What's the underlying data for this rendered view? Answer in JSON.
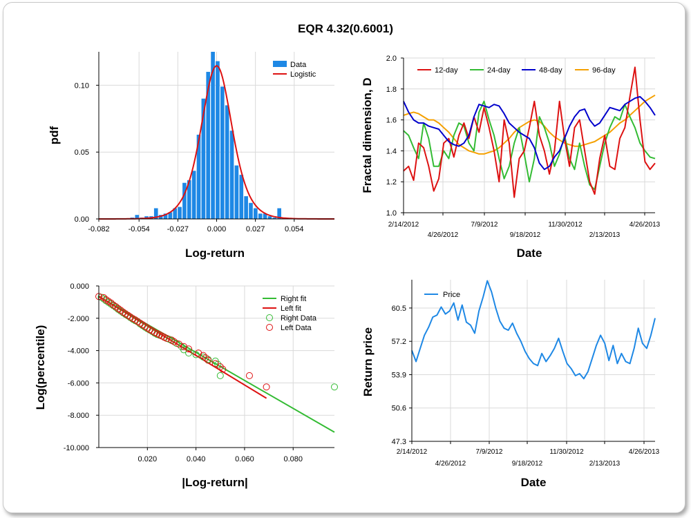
{
  "title": "EQR 4.32(0.6001)",
  "colors": {
    "hist_bar": "#1e88e5",
    "logistic": "#dd1111",
    "d12": "#dd1111",
    "d24": "#33bb33",
    "d48": "#0000cc",
    "d96": "#f5a000",
    "right": "#33bb33",
    "left": "#dd1111",
    "price": "#1e88e5",
    "grid": "#d9d9d9"
  },
  "chart_data": [
    {
      "type": "bar",
      "ylabel": "pdf",
      "xlabel": "Log-return",
      "xlim": [
        -0.082,
        0.082
      ],
      "ylim": [
        0,
        0.125
      ],
      "xticks": [
        -0.082,
        -0.054,
        -0.027,
        0.0,
        0.027,
        0.054
      ],
      "xtick_labels": [
        "-0.082",
        "-0.054",
        "-0.027",
        "0.000",
        "0.027",
        "0.054"
      ],
      "yticks": [
        0,
        0.05,
        0.1
      ],
      "ytick_labels": [
        "0.00",
        "0.05",
        "0.10"
      ],
      "legend": [
        "Data",
        "Logistic"
      ],
      "bin_width": 0.0033,
      "bins_x": [
        -0.062,
        -0.0587,
        -0.0554,
        -0.0521,
        -0.0488,
        -0.0455,
        -0.0422,
        -0.0389,
        -0.0356,
        -0.0323,
        -0.029,
        -0.0257,
        -0.0224,
        -0.0191,
        -0.0158,
        -0.0125,
        -0.0092,
        -0.0059,
        -0.0026,
        0.0007,
        0.004,
        0.0073,
        0.0106,
        0.0139,
        0.0172,
        0.0205,
        0.0238,
        0.0271,
        0.0304,
        0.0337,
        0.037,
        0.0403,
        0.0436,
        0.0469
      ],
      "values": [
        0,
        0.001,
        0.003,
        0.001,
        0.002,
        0.002,
        0.008,
        0.003,
        0.004,
        0.005,
        0.008,
        0.009,
        0.027,
        0.029,
        0.036,
        0.063,
        0.09,
        0.11,
        0.128,
        0.118,
        0.099,
        0.085,
        0.066,
        0.04,
        0.033,
        0.017,
        0.012,
        0.008,
        0.004,
        0.004,
        0.002,
        0.001,
        0.008,
        0.001
      ],
      "logistic_mu": 0.0,
      "logistic_s": 0.0072
    },
    {
      "type": "line",
      "ylabel": "Fractal dimension, D",
      "xlabel": "Date",
      "ylim": [
        1.0,
        2.0
      ],
      "yticks": [
        1.0,
        1.2,
        1.4,
        1.6,
        1.8,
        2.0
      ],
      "ytick_labels": [
        "1.0",
        "1.2",
        "1.4",
        "1.6",
        "1.8",
        "2.0"
      ],
      "xtick_labels": [
        "2/14/2012",
        "4/26/2012",
        "7/9/2012",
        "9/18/2012",
        "11/30/2012",
        "2/13/2013",
        "4/26/2013"
      ],
      "series": [
        {
          "name": "12-day",
          "color_key": "d12",
          "values": [
            1.27,
            1.3,
            1.21,
            1.45,
            1.42,
            1.3,
            1.14,
            1.22,
            1.45,
            1.48,
            1.36,
            1.5,
            1.58,
            1.48,
            1.62,
            1.52,
            1.68,
            1.55,
            1.4,
            1.2,
            1.6,
            1.45,
            1.1,
            1.35,
            1.4,
            1.55,
            1.72,
            1.5,
            1.4,
            1.25,
            1.4,
            1.72,
            1.48,
            1.3,
            1.55,
            1.6,
            1.4,
            1.2,
            1.12,
            1.35,
            1.5,
            1.3,
            1.28,
            1.48,
            1.55,
            1.75,
            1.94,
            1.6,
            1.33,
            1.28,
            1.32
          ]
        },
        {
          "name": "24-day",
          "color_key": "d24",
          "values": [
            1.53,
            1.5,
            1.42,
            1.35,
            1.58,
            1.48,
            1.3,
            1.3,
            1.4,
            1.35,
            1.5,
            1.58,
            1.56,
            1.45,
            1.4,
            1.65,
            1.72,
            1.6,
            1.5,
            1.35,
            1.22,
            1.3,
            1.45,
            1.55,
            1.38,
            1.2,
            1.35,
            1.62,
            1.55,
            1.45,
            1.3,
            1.38,
            1.5,
            1.35,
            1.28,
            1.45,
            1.3,
            1.18,
            1.15,
            1.3,
            1.45,
            1.55,
            1.62,
            1.6,
            1.7,
            1.62,
            1.55,
            1.45,
            1.4,
            1.36,
            1.35
          ]
        },
        {
          "name": "48-day",
          "color_key": "d48",
          "values": [
            1.72,
            1.65,
            1.6,
            1.58,
            1.58,
            1.56,
            1.55,
            1.54,
            1.5,
            1.46,
            1.44,
            1.43,
            1.45,
            1.5,
            1.62,
            1.7,
            1.69,
            1.68,
            1.7,
            1.69,
            1.64,
            1.58,
            1.55,
            1.52,
            1.5,
            1.48,
            1.42,
            1.32,
            1.28,
            1.3,
            1.36,
            1.4,
            1.48,
            1.56,
            1.62,
            1.66,
            1.67,
            1.6,
            1.56,
            1.58,
            1.63,
            1.68,
            1.67,
            1.66,
            1.7,
            1.72,
            1.74,
            1.75,
            1.72,
            1.68,
            1.63
          ]
        },
        {
          "name": "96-day",
          "color_key": "d96",
          "values": [
            1.63,
            1.64,
            1.65,
            1.64,
            1.62,
            1.6,
            1.6,
            1.58,
            1.55,
            1.52,
            1.48,
            1.44,
            1.42,
            1.4,
            1.39,
            1.38,
            1.38,
            1.39,
            1.4,
            1.42,
            1.45,
            1.48,
            1.52,
            1.55,
            1.57,
            1.59,
            1.6,
            1.59,
            1.56,
            1.52,
            1.49,
            1.47,
            1.45,
            1.44,
            1.43,
            1.43,
            1.44,
            1.45,
            1.46,
            1.48,
            1.5,
            1.52,
            1.55,
            1.58,
            1.6,
            1.63,
            1.66,
            1.69,
            1.72,
            1.74,
            1.76
          ]
        }
      ]
    },
    {
      "type": "scatter",
      "ylabel": "Log(percentile)",
      "xlabel": "|Log-return|",
      "xlim": [
        0,
        0.097
      ],
      "ylim": [
        -10.0,
        0.0
      ],
      "xticks": [
        0.02,
        0.04,
        0.06,
        0.08
      ],
      "xtick_labels": [
        "0.020",
        "0.040",
        "0.060",
        "0.080"
      ],
      "yticks": [
        0,
        -2,
        -4,
        -6,
        -8,
        -10
      ],
      "ytick_labels": [
        "0.000",
        "-2.000",
        "-4.000",
        "-6.000",
        "-8.000",
        "-10.000"
      ],
      "legend": [
        "Right fit",
        "Left fit",
        "Right Data",
        "Left Data"
      ],
      "right_fit": {
        "x": [
          0.0,
          0.097
        ],
        "y": [
          -0.65,
          -9.05
        ]
      },
      "left_fit": {
        "x": [
          0.0,
          0.069
        ],
        "y": [
          -0.65,
          -6.95
        ]
      },
      "right_data": {
        "x": [
          0.001,
          0.002,
          0.003,
          0.004,
          0.005,
          0.006,
          0.007,
          0.008,
          0.009,
          0.01,
          0.011,
          0.012,
          0.013,
          0.014,
          0.015,
          0.016,
          0.017,
          0.018,
          0.019,
          0.02,
          0.021,
          0.022,
          0.023,
          0.024,
          0.025,
          0.026,
          0.027,
          0.028,
          0.029,
          0.03,
          0.032,
          0.034,
          0.035,
          0.037,
          0.04,
          0.043,
          0.045,
          0.048,
          0.049,
          0.05,
          0.097
        ],
        "y": [
          -0.7,
          -0.8,
          -0.92,
          -1.02,
          -1.12,
          -1.22,
          -1.33,
          -1.45,
          -1.56,
          -1.66,
          -1.76,
          -1.85,
          -1.96,
          -2.06,
          -2.15,
          -2.22,
          -2.35,
          -2.45,
          -2.55,
          -2.65,
          -2.73,
          -2.82,
          -2.92,
          -3.0,
          -3.05,
          -3.1,
          -3.17,
          -3.25,
          -3.3,
          -3.38,
          -3.55,
          -3.75,
          -3.95,
          -4.15,
          -4.25,
          -4.4,
          -4.55,
          -4.65,
          -4.85,
          -5.55,
          -6.25
        ]
      },
      "left_data": {
        "x": [
          0.0,
          0.002,
          0.003,
          0.004,
          0.005,
          0.006,
          0.007,
          0.008,
          0.009,
          0.01,
          0.011,
          0.012,
          0.013,
          0.014,
          0.015,
          0.016,
          0.017,
          0.018,
          0.019,
          0.02,
          0.021,
          0.022,
          0.023,
          0.024,
          0.025,
          0.026,
          0.027,
          0.028,
          0.03,
          0.031,
          0.033,
          0.035,
          0.037,
          0.041,
          0.043,
          0.044,
          0.045,
          0.048,
          0.05,
          0.051,
          0.062,
          0.069
        ],
        "y": [
          -0.65,
          -0.72,
          -0.85,
          -0.95,
          -1.05,
          -1.18,
          -1.28,
          -1.4,
          -1.5,
          -1.62,
          -1.72,
          -1.82,
          -1.92,
          -2.02,
          -2.1,
          -2.2,
          -2.3,
          -2.4,
          -2.5,
          -2.6,
          -2.7,
          -2.78,
          -2.88,
          -2.95,
          -3.02,
          -3.1,
          -3.18,
          -3.25,
          -3.35,
          -3.45,
          -3.6,
          -3.75,
          -3.9,
          -4.15,
          -4.3,
          -4.45,
          -4.6,
          -4.8,
          -5.0,
          -5.15,
          -5.55,
          -6.25
        ]
      }
    },
    {
      "type": "line",
      "ylabel": "Return price",
      "xlabel": "Date",
      "ylim": [
        47.3,
        63.3
      ],
      "yticks": [
        47.3,
        50.6,
        53.9,
        57.2,
        60.5
      ],
      "ytick_labels": [
        "47.3",
        "50.6",
        "53.9",
        "57.2",
        "60.5"
      ],
      "xtick_labels": [
        "2/14/2012",
        "4/26/2012",
        "7/9/2012",
        "9/18/2012",
        "11/30/2012",
        "2/13/2013",
        "4/26/2013"
      ],
      "series": [
        {
          "name": "Price",
          "color_key": "price",
          "values": [
            56.3,
            55.2,
            56.5,
            57.8,
            58.6,
            59.6,
            59.8,
            60.6,
            59.9,
            60.2,
            61.0,
            59.3,
            60.8,
            59.1,
            58.8,
            58.0,
            60.2,
            61.6,
            63.2,
            62.1,
            60.5,
            59.2,
            58.5,
            58.3,
            59.0,
            58.0,
            57.2,
            56.2,
            55.5,
            55.0,
            54.8,
            56.0,
            55.2,
            55.8,
            56.5,
            57.5,
            56.2,
            55.0,
            54.5,
            53.8,
            54.0,
            53.5,
            54.2,
            55.5,
            56.8,
            57.8,
            57.0,
            55.3,
            56.8,
            55.0,
            56.0,
            55.2,
            55.0,
            56.5,
            58.5,
            57.0,
            56.5,
            57.8,
            59.5
          ]
        }
      ]
    }
  ]
}
